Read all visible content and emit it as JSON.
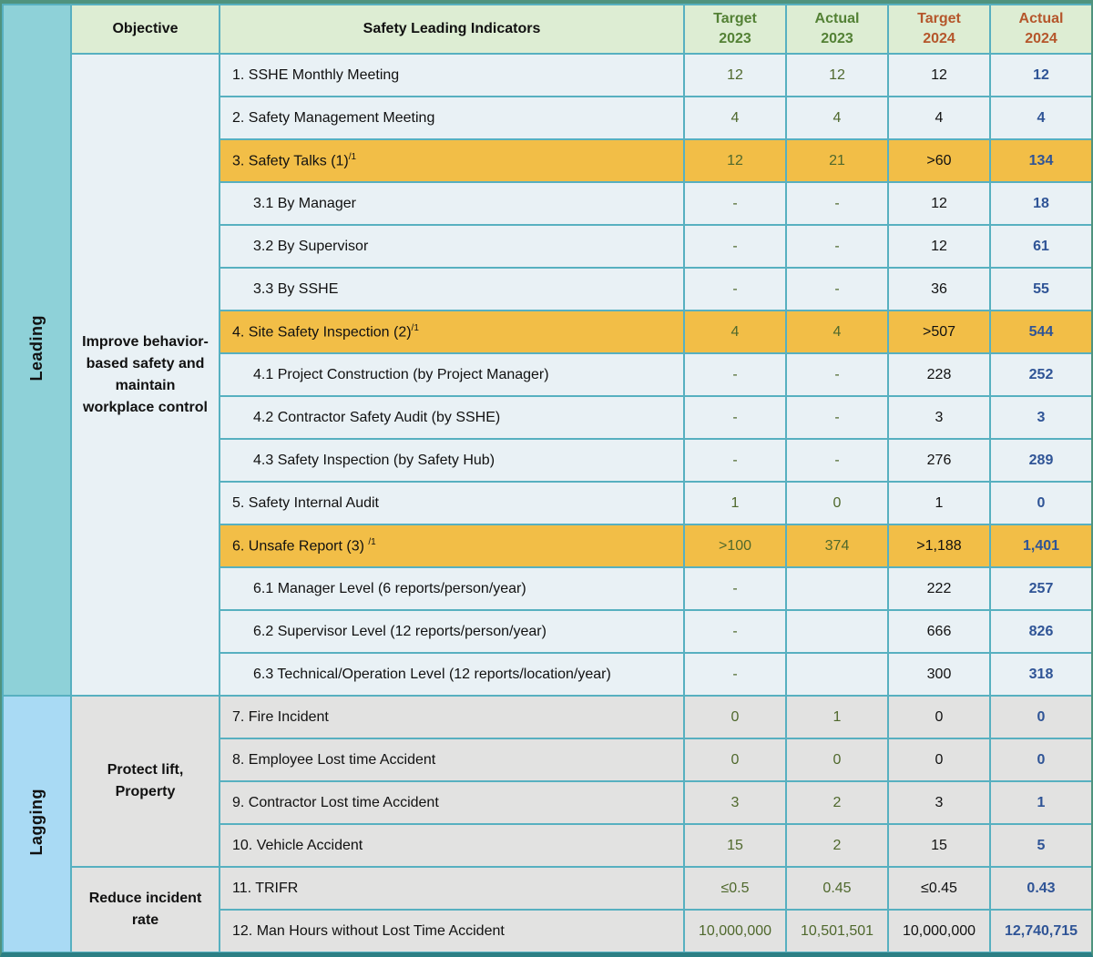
{
  "header": {
    "objective": "Objective",
    "indicators": "Safety Leading Indicators",
    "year_cols": [
      {
        "label": "Target",
        "year": "2023",
        "theme": "green"
      },
      {
        "label": "Actual",
        "year": "2023",
        "theme": "green"
      },
      {
        "label": "Target",
        "year": "2024",
        "theme": "orange"
      },
      {
        "label": "Actual",
        "year": "2024",
        "theme": "orange"
      }
    ]
  },
  "bands": [
    {
      "label": "Leading"
    },
    {
      "label": "Lagging"
    }
  ],
  "objectives": [
    {
      "text": "Improve behavior-based safety and maintain workplace control",
      "span": 15
    },
    {
      "text": "Protect lift, Property",
      "span": 4
    },
    {
      "text": "Reduce incident rate",
      "span": 2
    }
  ],
  "rows": [
    {
      "label": "1. SSHE Monthly Meeting",
      "sup": "",
      "indent": false,
      "highlight": false,
      "band": 0,
      "objective": 0,
      "values": [
        "12",
        "12",
        "12",
        "12"
      ]
    },
    {
      "label": "2. Safety Management Meeting",
      "sup": "",
      "indent": false,
      "highlight": false,
      "band": 0,
      "objective": null,
      "values": [
        "4",
        "4",
        "4",
        "4"
      ]
    },
    {
      "label": "3. Safety Talks (1)",
      "sup": "/1",
      "indent": false,
      "highlight": true,
      "band": 0,
      "objective": null,
      "values": [
        "12",
        "21",
        ">60",
        "134"
      ]
    },
    {
      "label": "3.1 By Manager",
      "sup": "",
      "indent": true,
      "highlight": false,
      "band": 0,
      "objective": null,
      "values": [
        "-",
        "-",
        "12",
        "18"
      ]
    },
    {
      "label": "3.2 By Supervisor",
      "sup": "",
      "indent": true,
      "highlight": false,
      "band": 0,
      "objective": null,
      "values": [
        "-",
        "-",
        "12",
        "61"
      ]
    },
    {
      "label": "3.3 By SSHE",
      "sup": "",
      "indent": true,
      "highlight": false,
      "band": 0,
      "objective": null,
      "values": [
        "-",
        "-",
        "36",
        "55"
      ]
    },
    {
      "label": "4. Site Safety Inspection (2)",
      "sup": "/1",
      "indent": false,
      "highlight": true,
      "band": 0,
      "objective": null,
      "values": [
        "4",
        "4",
        ">507",
        "544"
      ]
    },
    {
      "label": "4.1 Project Construction (by Project Manager)",
      "sup": "",
      "indent": true,
      "highlight": false,
      "band": 0,
      "objective": null,
      "values": [
        "-",
        "-",
        "228",
        "252"
      ]
    },
    {
      "label": "4.2 Contractor Safety Audit (by SSHE)",
      "sup": "",
      "indent": true,
      "highlight": false,
      "band": 0,
      "objective": null,
      "values": [
        "-",
        "-",
        "3",
        "3"
      ]
    },
    {
      "label": "4.3 Safety Inspection (by Safety Hub)",
      "sup": "",
      "indent": true,
      "highlight": false,
      "band": 0,
      "objective": null,
      "values": [
        "-",
        "-",
        "276",
        "289"
      ]
    },
    {
      "label": "5. Safety Internal Audit",
      "sup": "",
      "indent": false,
      "highlight": false,
      "band": 0,
      "objective": null,
      "values": [
        "1",
        "0",
        "1",
        "0"
      ]
    },
    {
      "label": "6. Unsafe Report (3) ",
      "sup": "/1",
      "indent": false,
      "highlight": true,
      "band": 0,
      "objective": null,
      "values": [
        ">100",
        "374",
        ">1,188",
        "1,401"
      ]
    },
    {
      "label": "6.1 Manager Level (6 reports/person/year)",
      "sup": "",
      "indent": true,
      "highlight": false,
      "band": 0,
      "objective": null,
      "values": [
        "-",
        "",
        "222",
        "257"
      ]
    },
    {
      "label": "6.2 Supervisor Level  (12 reports/person/year)",
      "sup": "",
      "indent": true,
      "highlight": false,
      "band": 0,
      "objective": null,
      "values": [
        "-",
        "",
        "666",
        "826"
      ]
    },
    {
      "label": "6.3 Technical/Operation Level (12 reports/location/year)",
      "sup": "",
      "indent": true,
      "highlight": false,
      "band": 0,
      "objective": null,
      "values": [
        "-",
        "",
        "300",
        "318"
      ]
    },
    {
      "label": "7. Fire Incident",
      "sup": "",
      "indent": false,
      "highlight": false,
      "band": 1,
      "objective": 1,
      "values": [
        "0",
        "1",
        "0",
        "0"
      ]
    },
    {
      "label": "8. Employee Lost time Accident",
      "sup": "",
      "indent": false,
      "highlight": false,
      "band": 1,
      "objective": null,
      "values": [
        "0",
        "0",
        "0",
        "0"
      ]
    },
    {
      "label": "9. Contractor Lost time Accident",
      "sup": "",
      "indent": false,
      "highlight": false,
      "band": 1,
      "objective": null,
      "values": [
        "3",
        "2",
        "3",
        "1"
      ]
    },
    {
      "label": "10. Vehicle Accident",
      "sup": "",
      "indent": false,
      "highlight": false,
      "band": 1,
      "objective": null,
      "values": [
        "15",
        "2",
        "15",
        "5"
      ]
    },
    {
      "label": "11. TRIFR",
      "sup": "",
      "indent": false,
      "highlight": false,
      "band": 1,
      "objective": 2,
      "values": [
        "≤0.5",
        "0.45",
        "≤0.45",
        "0.43"
      ]
    },
    {
      "label": "12. Man Hours without Lost Time Accident",
      "sup": "",
      "indent": false,
      "highlight": false,
      "band": 1,
      "objective": null,
      "values": [
        "10,000,000",
        "10,501,501",
        "10,000,000",
        "12,740,715"
      ]
    }
  ],
  "colors": {
    "band_leading": "#8ed1d8",
    "band_lagging": "#a9daf4",
    "header_bg": "#ddedd3",
    "header_2023_text": "#538135",
    "header_2024_text": "#b5562b",
    "row_leading_bg": "#e9f1f5",
    "row_lagging_bg": "#e2e2e1",
    "highlight_row_bg": "#f2be47",
    "cell_border": "#57b0c0",
    "frame_top": "#4f937e",
    "frame_bottom": "#2c7f84",
    "value_2023_text": "#4f682c",
    "value_2024_target_text": "#111111",
    "value_2024_actual_text": "#2f5496"
  }
}
